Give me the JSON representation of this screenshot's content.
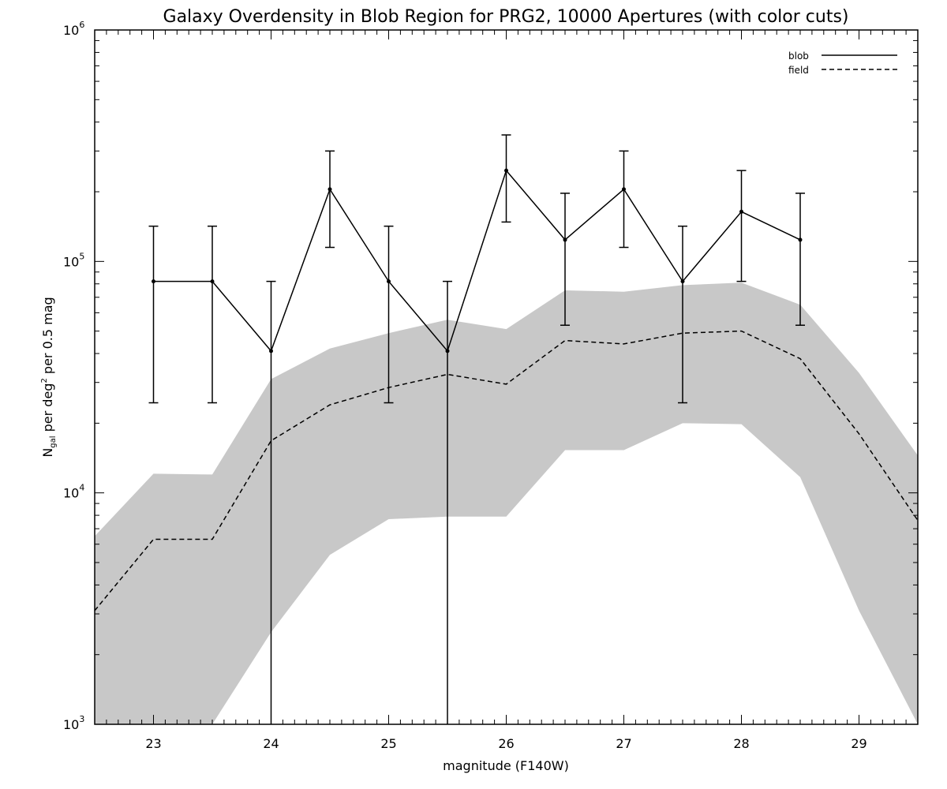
{
  "chart_data": {
    "type": "line",
    "title": "Galaxy Overdensity in Blob Region for PRG2, 10000 Apertures (with color cuts)",
    "xlabel": "magnitude (F140W)",
    "ylabel": {
      "n": "N",
      "n_sub": "gal",
      "mid": " per deg",
      "sup": "2",
      "tail": " per 0.5 mag"
    },
    "xlim": [
      22.5,
      29.5
    ],
    "ylim": [
      1000,
      1000000
    ],
    "yscale": "log",
    "x_ticks": [
      "23",
      "24",
      "25",
      "26",
      "27",
      "28",
      "29"
    ],
    "y_ticks": [
      {
        "base": "10",
        "exp": "3"
      },
      {
        "base": "10",
        "exp": "4"
      },
      {
        "base": "10",
        "exp": "5"
      },
      {
        "base": "10",
        "exp": "6"
      }
    ],
    "legend": {
      "position": "top-right",
      "entries": [
        {
          "label": "blob",
          "style": "solid"
        },
        {
          "label": "field",
          "style": "dashed"
        }
      ]
    },
    "series": [
      {
        "name": "blob",
        "style": "solid",
        "markers": true,
        "points": [
          {
            "x": 23.0,
            "y": 82000,
            "lo": 24500,
            "hi": 142000
          },
          {
            "x": 23.5,
            "y": 82000,
            "lo": 24500,
            "hi": 142000
          },
          {
            "x": 24.0,
            "y": 41000,
            "lo": 1000,
            "hi": 82000
          },
          {
            "x": 24.5,
            "y": 205000,
            "lo": 115000,
            "hi": 300000
          },
          {
            "x": 25.0,
            "y": 82000,
            "lo": 24500,
            "hi": 142000
          },
          {
            "x": 25.5,
            "y": 41000,
            "lo": 1000,
            "hi": 82000
          },
          {
            "x": 26.0,
            "y": 247000,
            "lo": 148000,
            "hi": 352000
          },
          {
            "x": 26.5,
            "y": 124000,
            "lo": 53000,
            "hi": 197000
          },
          {
            "x": 27.0,
            "y": 205000,
            "lo": 115000,
            "hi": 300000
          },
          {
            "x": 27.5,
            "y": 82000,
            "lo": 24500,
            "hi": 142000
          },
          {
            "x": 28.0,
            "y": 164000,
            "lo": 82000,
            "hi": 247000
          },
          {
            "x": 28.5,
            "y": 124000,
            "lo": 53000,
            "hi": 197000
          }
        ]
      },
      {
        "name": "field",
        "style": "dashed",
        "x": [
          22.5,
          23.0,
          23.5,
          24.0,
          24.5,
          25.0,
          25.5,
          26.0,
          26.5,
          27.0,
          27.5,
          28.0,
          28.5,
          29.0,
          29.5
        ],
        "values": [
          3100,
          6300,
          6300,
          16800,
          24000,
          28500,
          32500,
          29500,
          45500,
          44000,
          49000,
          50000,
          38000,
          18000,
          7600
        ]
      }
    ],
    "band": {
      "color": "#c8c8c8",
      "x": [
        22.5,
        23.0,
        23.5,
        24.0,
        24.5,
        25.0,
        25.5,
        26.0,
        26.5,
        27.0,
        27.5,
        28.0,
        28.5,
        29.0,
        29.5
      ],
      "upper": [
        6500,
        12100,
        12000,
        31000,
        42000,
        49000,
        56000,
        51000,
        75000,
        74000,
        79000,
        81000,
        65000,
        33000,
        14500
      ],
      "lower": [
        1000,
        1000,
        1000,
        2500,
        5400,
        7700,
        7900,
        7900,
        15300,
        15300,
        20000,
        19800,
        11700,
        3100,
        1000
      ]
    },
    "colors": {
      "line": "#000000",
      "band": "#c8c8c8",
      "background": "#ffffff"
    }
  }
}
